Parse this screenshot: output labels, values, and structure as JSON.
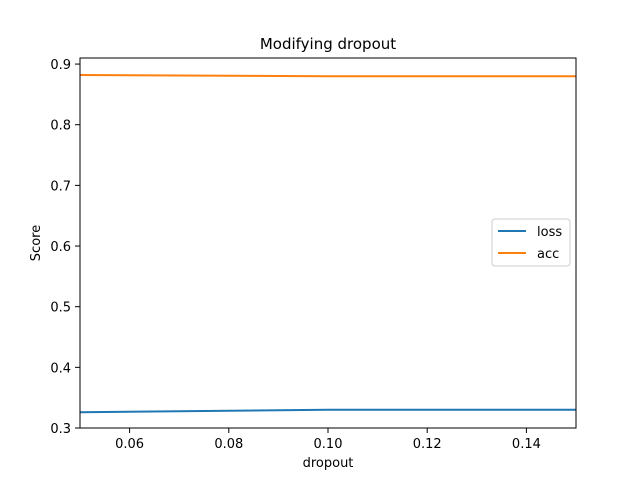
{
  "chart_data": {
    "type": "line",
    "title": "Modifying dropout",
    "xlabel": "dropout",
    "ylabel": "Score",
    "xlim": [
      0.05,
      0.15
    ],
    "ylim": [
      0.3,
      0.91
    ],
    "xticks": [
      0.06,
      0.08,
      0.1,
      0.12,
      0.14
    ],
    "xtick_labels": [
      "0.06",
      "0.08",
      "0.10",
      "0.12",
      "0.14"
    ],
    "yticks": [
      0.3,
      0.4,
      0.5,
      0.6,
      0.7,
      0.8,
      0.9
    ],
    "ytick_labels": [
      "0.3",
      "0.4",
      "0.5",
      "0.6",
      "0.7",
      "0.8",
      "0.9"
    ],
    "x": [
      0.05,
      0.1,
      0.15
    ],
    "series": [
      {
        "name": "loss",
        "color": "#1f77b4",
        "values": [
          0.326,
          0.33,
          0.33
        ]
      },
      {
        "name": "acc",
        "color": "#ff7f0e",
        "values": [
          0.882,
          0.88,
          0.88
        ]
      }
    ],
    "grid": false,
    "legend_position": "center-right"
  }
}
